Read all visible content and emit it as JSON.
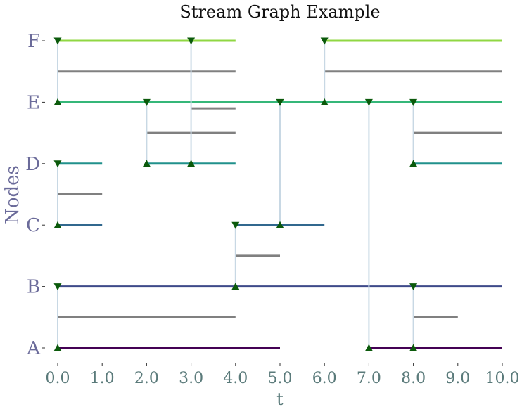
{
  "chart_data": {
    "type": "stream-graph",
    "title": "Stream Graph Example",
    "xlabel": "t",
    "ylabel": "Nodes",
    "xlim": [
      0,
      10
    ],
    "xticks": [
      "0.0",
      "1.0",
      "2.0",
      "3.0",
      "4.0",
      "5.0",
      "6.0",
      "7.0",
      "8.0",
      "9.0",
      "10.0"
    ],
    "nodes": [
      "A",
      "B",
      "C",
      "D",
      "E",
      "F"
    ],
    "node_colors": {
      "A": "#440154",
      "B": "#3e4a89",
      "C": "#31688e",
      "D": "#21918c",
      "E": "#35b779",
      "F": "#90d743"
    },
    "link_color": "#808080",
    "event_color": "#c8d8e4",
    "marker_color": "#0b5a0b",
    "node_presence": [
      {
        "node": "A",
        "intervals": [
          [
            0,
            5
          ],
          [
            7,
            10
          ]
        ]
      },
      {
        "node": "B",
        "intervals": [
          [
            0,
            10
          ]
        ]
      },
      {
        "node": "C",
        "intervals": [
          [
            0,
            1
          ],
          [
            4,
            6
          ]
        ]
      },
      {
        "node": "D",
        "intervals": [
          [
            0,
            1
          ],
          [
            2,
            4
          ],
          [
            8,
            10
          ]
        ]
      },
      {
        "node": "E",
        "intervals": [
          [
            0,
            10
          ]
        ]
      },
      {
        "node": "F",
        "intervals": [
          [
            0,
            4
          ],
          [
            6,
            10
          ]
        ]
      }
    ],
    "links": [
      {
        "between": [
          "A",
          "B"
        ],
        "interval": [
          0,
          4
        ]
      },
      {
        "between": [
          "A",
          "B"
        ],
        "interval": [
          8,
          9
        ]
      },
      {
        "between": [
          "B",
          "C"
        ],
        "interval": [
          4,
          5
        ]
      },
      {
        "between": [
          "C",
          "D"
        ],
        "interval": [
          0,
          1
        ]
      },
      {
        "between": [
          "D",
          "E"
        ],
        "interval": [
          2,
          4
        ]
      },
      {
        "between": [
          "D",
          "E"
        ],
        "interval": [
          8,
          10
        ]
      },
      {
        "between": [
          "D",
          "E"
        ],
        "interval": [
          3,
          4
        ],
        "level": 0.9
      },
      {
        "between": [
          "E",
          "F"
        ],
        "interval": [
          0,
          4
        ]
      },
      {
        "between": [
          "E",
          "F"
        ],
        "interval": [
          6,
          10
        ]
      }
    ],
    "link_events": [
      {
        "t": 0,
        "from": "A",
        "to": "B"
      },
      {
        "t": 0,
        "from": "C",
        "to": "D"
      },
      {
        "t": 0,
        "from": "E",
        "to": "F"
      },
      {
        "t": 2,
        "from": "D",
        "to": "E"
      },
      {
        "t": 3,
        "from": "D",
        "to": "F"
      },
      {
        "t": 4,
        "from": "B",
        "to": "C"
      },
      {
        "t": 5,
        "from": "C",
        "to": "E"
      },
      {
        "t": 6,
        "from": "E",
        "to": "F"
      },
      {
        "t": 7,
        "from": "A",
        "to": "E"
      },
      {
        "t": 8,
        "from": "A",
        "to": "B"
      },
      {
        "t": 8,
        "from": "D",
        "to": "E"
      }
    ]
  }
}
